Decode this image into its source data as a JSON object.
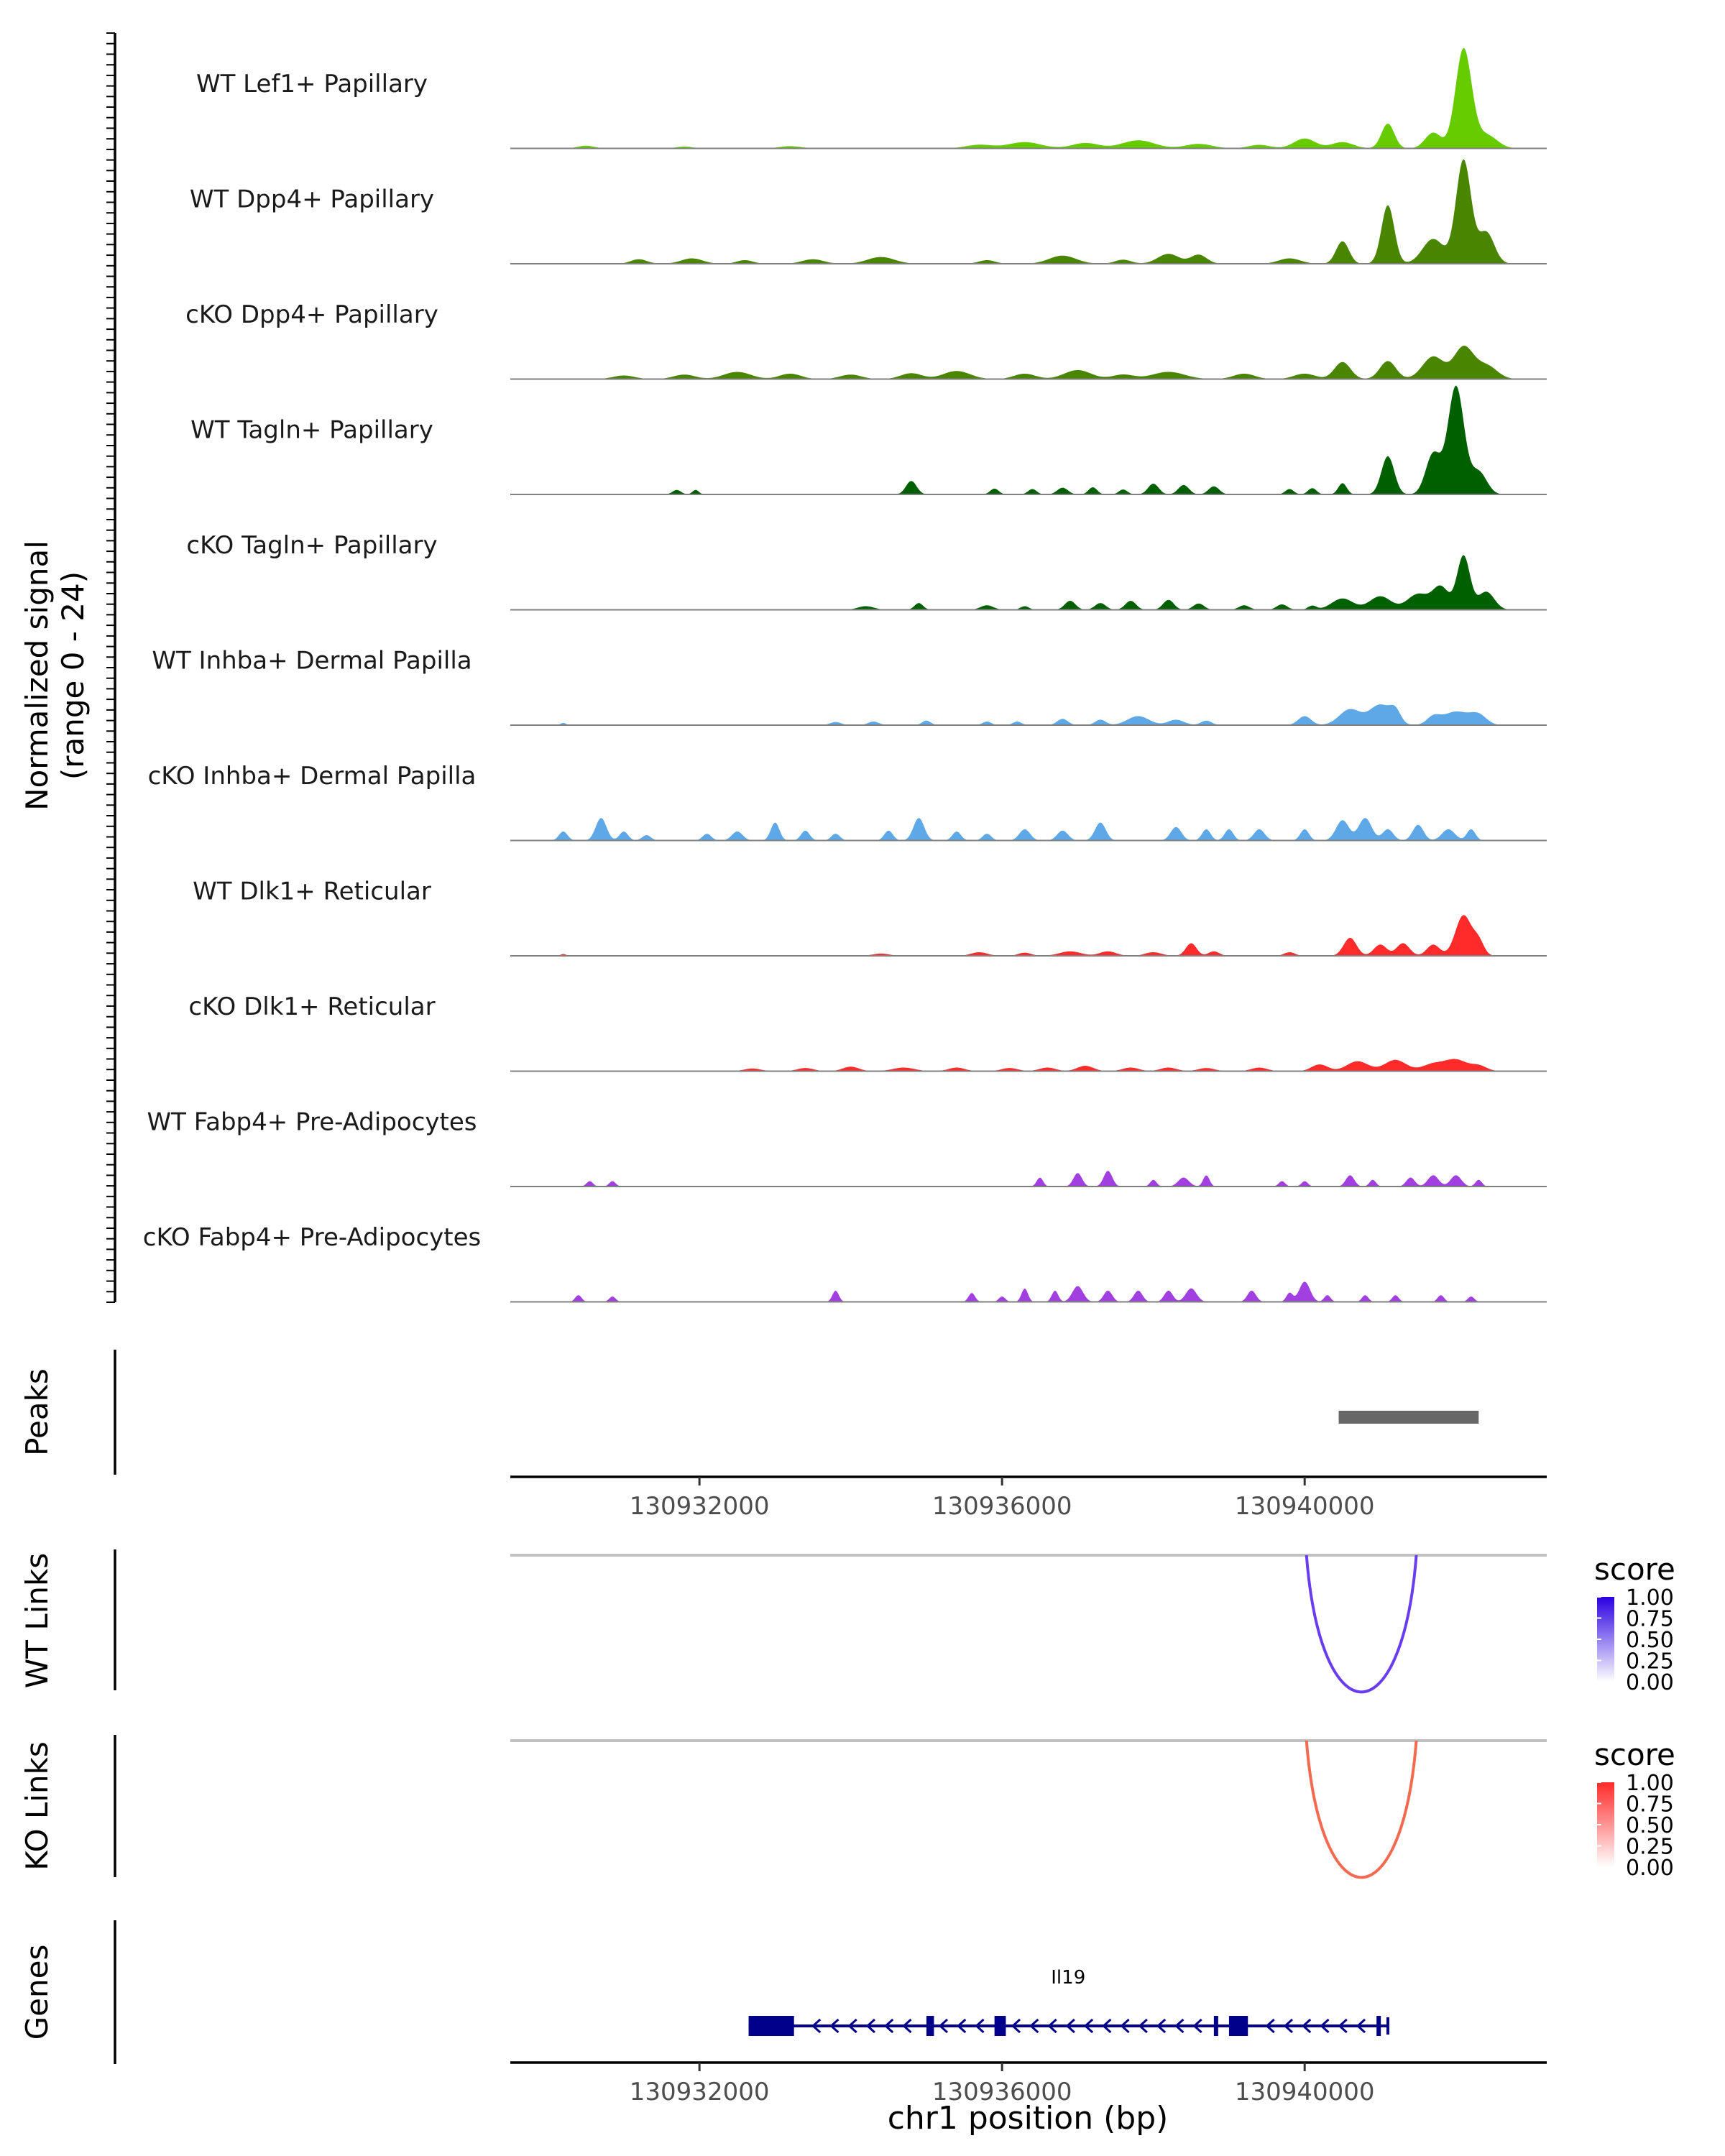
{
  "chart_data": {
    "type": "area",
    "chromosome": "chr1",
    "x_range": [
      130929500,
      130943200
    ],
    "y_range": [
      0,
      24
    ],
    "signal_ylabel": "Normalized signal",
    "signal_ylabel_range": "(range 0 - 24)",
    "x_ticks": [
      130932000,
      130936000,
      130940000
    ],
    "x_tick_labels": [
      "130932000",
      "130936000",
      "130940000"
    ],
    "xlabel": "chr1 position (bp)",
    "tracks": [
      {
        "name": "WT Lef1+ Papillary",
        "color": "#66cc00",
        "peaks": [
          [
            130930500,
            0.6,
            150
          ],
          [
            130931800,
            0.4,
            150
          ],
          [
            130933200,
            0.5,
            200
          ],
          [
            130935700,
            0.8,
            250
          ],
          [
            130936300,
            1.4,
            300
          ],
          [
            130937100,
            1.2,
            250
          ],
          [
            130937800,
            1.8,
            300
          ],
          [
            130938600,
            1.0,
            250
          ],
          [
            130939400,
            0.8,
            200
          ],
          [
            130940000,
            2.2,
            200
          ],
          [
            130940500,
            1.4,
            200
          ],
          [
            130941100,
            5.5,
            120
          ],
          [
            130941700,
            3.5,
            150
          ],
          [
            130942100,
            22.0,
            150
          ],
          [
            130942400,
            3.0,
            200
          ]
        ]
      },
      {
        "name": "WT Dpp4+ Papillary",
        "color": "#4a8500",
        "peaks": [
          [
            130931200,
            1.0,
            150
          ],
          [
            130931900,
            1.2,
            200
          ],
          [
            130932600,
            0.8,
            150
          ],
          [
            130933500,
            1.0,
            200
          ],
          [
            130934400,
            1.5,
            250
          ],
          [
            130935800,
            0.8,
            150
          ],
          [
            130936800,
            1.8,
            250
          ],
          [
            130937600,
            0.9,
            150
          ],
          [
            130938200,
            2.2,
            200
          ],
          [
            130938600,
            2.0,
            150
          ],
          [
            130939800,
            1.2,
            200
          ],
          [
            130940500,
            5.0,
            120
          ],
          [
            130941100,
            13.0,
            120
          ],
          [
            130941700,
            5.5,
            200
          ],
          [
            130942100,
            23.0,
            140
          ],
          [
            130942400,
            7.0,
            150
          ]
        ]
      },
      {
        "name": "cKO Dpp4+ Papillary",
        "color": "#4a8500",
        "peaks": [
          [
            130931000,
            0.8,
            200
          ],
          [
            130931800,
            1.0,
            200
          ],
          [
            130932500,
            1.6,
            250
          ],
          [
            130933200,
            1.2,
            200
          ],
          [
            130934000,
            1.0,
            200
          ],
          [
            130934800,
            1.3,
            200
          ],
          [
            130935400,
            1.8,
            250
          ],
          [
            130936300,
            1.2,
            200
          ],
          [
            130937000,
            2.0,
            250
          ],
          [
            130937600,
            1.0,
            200
          ],
          [
            130938200,
            1.6,
            300
          ],
          [
            130939200,
            1.2,
            200
          ],
          [
            130940000,
            1.2,
            200
          ],
          [
            130940500,
            3.8,
            150
          ],
          [
            130941100,
            4.0,
            150
          ],
          [
            130941700,
            5.0,
            200
          ],
          [
            130942100,
            7.0,
            180
          ],
          [
            130942400,
            3.0,
            200
          ]
        ]
      },
      {
        "name": "WT Tagln+ Papillary",
        "color": "#006000",
        "peaks": [
          [
            130931700,
            1.0,
            80
          ],
          [
            130931950,
            1.0,
            60
          ],
          [
            130934800,
            3.0,
            100
          ],
          [
            130935900,
            1.3,
            80
          ],
          [
            130936400,
            1.2,
            80
          ],
          [
            130936800,
            1.5,
            100
          ],
          [
            130937200,
            1.6,
            80
          ],
          [
            130937600,
            1.1,
            80
          ],
          [
            130938000,
            2.4,
            100
          ],
          [
            130938400,
            2.1,
            100
          ],
          [
            130938800,
            1.8,
            100
          ],
          [
            130939800,
            1.2,
            80
          ],
          [
            130940100,
            1.4,
            80
          ],
          [
            130940500,
            2.5,
            80
          ],
          [
            130941100,
            8.5,
            120
          ],
          [
            130941700,
            9.0,
            140
          ],
          [
            130942000,
            24.0,
            150
          ],
          [
            130942300,
            5.0,
            150
          ]
        ]
      },
      {
        "name": "cKO Tagln+ Papillary",
        "color": "#006000",
        "peaks": [
          [
            130934200,
            0.8,
            150
          ],
          [
            130934900,
            1.5,
            80
          ],
          [
            130935800,
            1.0,
            120
          ],
          [
            130936300,
            0.8,
            80
          ],
          [
            130936900,
            2.0,
            100
          ],
          [
            130937300,
            1.5,
            100
          ],
          [
            130937700,
            2.0,
            100
          ],
          [
            130938200,
            2.2,
            100
          ],
          [
            130938600,
            1.4,
            100
          ],
          [
            130939200,
            1.0,
            100
          ],
          [
            130939700,
            1.2,
            100
          ],
          [
            130940100,
            0.9,
            80
          ],
          [
            130940500,
            2.5,
            200
          ],
          [
            130941000,
            3.0,
            200
          ],
          [
            130941500,
            3.5,
            200
          ],
          [
            130941800,
            5.0,
            150
          ],
          [
            130942100,
            12.0,
            120
          ],
          [
            130942400,
            4.0,
            150
          ]
        ]
      },
      {
        "name": "WT Inhba+ Dermal Papilla",
        "color": "#5ea8e8",
        "peaks": [
          [
            130930200,
            0.5,
            50
          ],
          [
            130933800,
            0.7,
            100
          ],
          [
            130934300,
            0.8,
            100
          ],
          [
            130935000,
            1.0,
            80
          ],
          [
            130935800,
            0.8,
            80
          ],
          [
            130936200,
            0.8,
            80
          ],
          [
            130936800,
            1.4,
            100
          ],
          [
            130937300,
            1.2,
            100
          ],
          [
            130937800,
            2.0,
            200
          ],
          [
            130938300,
            1.2,
            150
          ],
          [
            130938700,
            1.0,
            100
          ],
          [
            130940000,
            2.0,
            120
          ],
          [
            130940600,
            3.5,
            200
          ],
          [
            130941000,
            4.5,
            200
          ],
          [
            130941200,
            2.5,
            100
          ],
          [
            130941700,
            1.6,
            120
          ],
          [
            130942000,
            3.0,
            250
          ],
          [
            130942300,
            2.0,
            150
          ]
        ]
      },
      {
        "name": "cKO Inhba+ Dermal Papilla",
        "color": "#5ea8e8",
        "peaks": [
          [
            130930200,
            2.0,
            80
          ],
          [
            130930700,
            5.0,
            100
          ],
          [
            130931000,
            2.0,
            80
          ],
          [
            130931300,
            1.2,
            80
          ],
          [
            130932100,
            1.5,
            80
          ],
          [
            130932500,
            2.0,
            100
          ],
          [
            130933000,
            4.0,
            80
          ],
          [
            130933400,
            2.2,
            80
          ],
          [
            130933800,
            1.5,
            80
          ],
          [
            130934500,
            2.2,
            80
          ],
          [
            130934900,
            5.0,
            100
          ],
          [
            130935400,
            2.0,
            80
          ],
          [
            130935800,
            1.5,
            80
          ],
          [
            130936300,
            2.5,
            100
          ],
          [
            130936800,
            2.2,
            100
          ],
          [
            130937300,
            4.0,
            100
          ],
          [
            130938300,
            3.0,
            100
          ],
          [
            130938700,
            2.5,
            80
          ],
          [
            130939000,
            2.5,
            80
          ],
          [
            130939400,
            2.5,
            100
          ],
          [
            130940000,
            2.5,
            80
          ],
          [
            130940500,
            4.5,
            120
          ],
          [
            130940800,
            5.0,
            120
          ],
          [
            130941100,
            2.5,
            100
          ],
          [
            130941500,
            3.5,
            100
          ],
          [
            130941900,
            2.5,
            120
          ],
          [
            130942200,
            2.5,
            80
          ]
        ]
      },
      {
        "name": "WT Dlk1+ Reticular",
        "color": "#ff2a2a",
        "peaks": [
          [
            130930200,
            0.4,
            50
          ],
          [
            130934400,
            0.5,
            150
          ],
          [
            130935700,
            0.8,
            150
          ],
          [
            130936300,
            0.7,
            120
          ],
          [
            130936900,
            1.0,
            200
          ],
          [
            130937400,
            1.0,
            150
          ],
          [
            130938000,
            0.8,
            150
          ],
          [
            130938500,
            2.8,
            100
          ],
          [
            130938800,
            1.0,
            100
          ],
          [
            130939800,
            0.8,
            100
          ],
          [
            130940600,
            4.0,
            120
          ],
          [
            130941000,
            2.5,
            120
          ],
          [
            130941300,
            2.8,
            120
          ],
          [
            130941700,
            2.5,
            120
          ],
          [
            130942100,
            9.0,
            150
          ],
          [
            130942300,
            3.0,
            100
          ]
        ]
      },
      {
        "name": "cKO Dlk1+ Reticular",
        "color": "#ff2a2a",
        "peaks": [
          [
            130932700,
            0.6,
            150
          ],
          [
            130933400,
            0.7,
            150
          ],
          [
            130934000,
            1.0,
            150
          ],
          [
            130934700,
            0.8,
            200
          ],
          [
            130935400,
            0.8,
            150
          ],
          [
            130936100,
            0.7,
            150
          ],
          [
            130936600,
            0.8,
            150
          ],
          [
            130937100,
            1.2,
            150
          ],
          [
            130937700,
            0.8,
            150
          ],
          [
            130938200,
            0.8,
            150
          ],
          [
            130938700,
            0.7,
            150
          ],
          [
            130939400,
            0.8,
            150
          ],
          [
            130940200,
            1.5,
            150
          ],
          [
            130940700,
            2.2,
            200
          ],
          [
            130941200,
            2.5,
            200
          ],
          [
            130941700,
            1.6,
            200
          ],
          [
            130942000,
            2.5,
            200
          ],
          [
            130942300,
            1.2,
            150
          ]
        ]
      },
      {
        "name": "WT Fabp4+ Pre-Adipocytes",
        "color": "#a23fe0",
        "peaks": [
          [
            130930550,
            1.2,
            60
          ],
          [
            130930850,
            1.2,
            60
          ],
          [
            130936500,
            2.0,
            60
          ],
          [
            130937000,
            3.0,
            80
          ],
          [
            130937400,
            3.5,
            80
          ],
          [
            130938000,
            1.5,
            60
          ],
          [
            130938400,
            2.0,
            100
          ],
          [
            130938700,
            2.5,
            60
          ],
          [
            130939700,
            1.2,
            60
          ],
          [
            130940000,
            1.2,
            60
          ],
          [
            130940600,
            2.5,
            80
          ],
          [
            130940900,
            1.5,
            60
          ],
          [
            130941400,
            2.0,
            80
          ],
          [
            130941700,
            2.5,
            100
          ],
          [
            130942000,
            2.5,
            100
          ],
          [
            130942300,
            1.5,
            60
          ]
        ]
      },
      {
        "name": "cKO Fabp4+ Pre-Adipocytes",
        "color": "#a23fe0",
        "peaks": [
          [
            130930400,
            1.5,
            60
          ],
          [
            130930850,
            1.2,
            60
          ],
          [
            130933800,
            2.5,
            60
          ],
          [
            130935600,
            2.0,
            60
          ],
          [
            130936000,
            1.2,
            60
          ],
          [
            130936300,
            3.0,
            60
          ],
          [
            130936700,
            2.5,
            60
          ],
          [
            130937000,
            3.5,
            100
          ],
          [
            130937400,
            2.5,
            80
          ],
          [
            130937800,
            2.5,
            80
          ],
          [
            130938200,
            2.5,
            80
          ],
          [
            130938500,
            3.0,
            100
          ],
          [
            130939300,
            2.5,
            80
          ],
          [
            130939800,
            2.0,
            60
          ],
          [
            130940000,
            4.5,
            100
          ],
          [
            130940300,
            1.5,
            60
          ],
          [
            130940800,
            1.5,
            60
          ],
          [
            130941200,
            1.5,
            60
          ],
          [
            130941800,
            1.5,
            60
          ],
          [
            130942200,
            1.2,
            60
          ]
        ]
      }
    ],
    "peaks_track": {
      "label": "Peaks",
      "regions": [
        [
          130940450,
          130942300
        ]
      ],
      "color": "#676767"
    },
    "links": [
      {
        "label": "WT Links",
        "start": 130940100,
        "end": 130941400,
        "score": 1.0,
        "color": "#6a3cf0",
        "legend": {
          "title": "score",
          "ticks": [
            "1.00",
            "0.75",
            "0.50",
            "0.25",
            "0.00"
          ],
          "color_high": "#2a00e0",
          "color_low": "#ffffff"
        }
      },
      {
        "label": "KO Links",
        "start": 130940100,
        "end": 130941400,
        "score": 1.0,
        "color": "#f26a4f",
        "legend": {
          "title": "score",
          "ticks": [
            "1.00",
            "0.75",
            "0.50",
            "0.25",
            "0.00"
          ],
          "color_high": "#ff2a2a",
          "color_low": "#ffffff"
        }
      }
    ],
    "genes_track": {
      "label": "Genes",
      "gene_name": "Il19",
      "strand": "-",
      "start": 130932650,
      "end": 130941100,
      "exons": [
        [
          130932650,
          130933250
        ],
        [
          130935000,
          130935100
        ],
        [
          130935900,
          130936050
        ],
        [
          130938800,
          130938850
        ],
        [
          130939000,
          130939250
        ],
        [
          130940950,
          130941000
        ]
      ],
      "color": "#00008b"
    }
  }
}
